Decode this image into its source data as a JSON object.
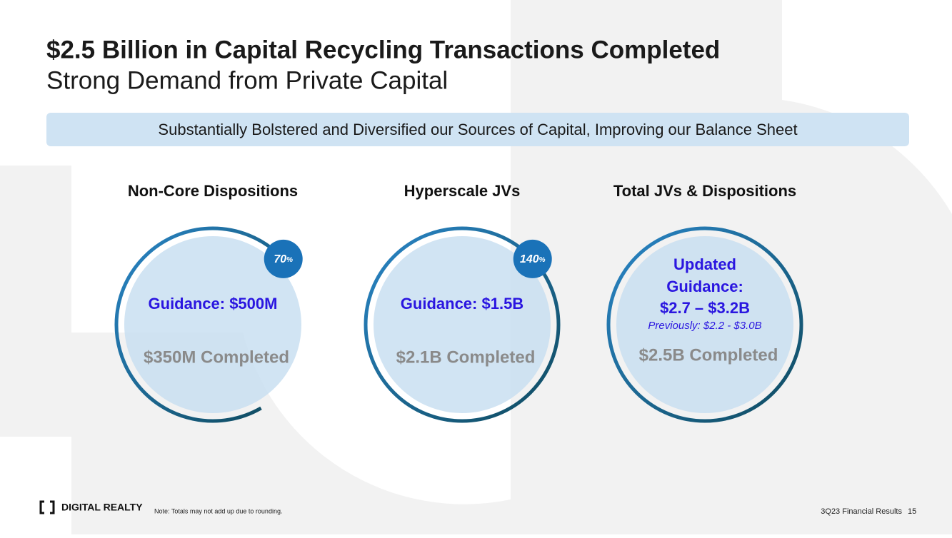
{
  "header": {
    "title": "$2.5 Billion in Capital Recycling Transactions Completed",
    "subtitle": "Strong Demand from Private Capital"
  },
  "banner": "Substantially Bolstered and Diversified our Sources of Capital, Improving our Balance Sheet",
  "panels": [
    {
      "heading": "Non-Core Dispositions",
      "progress": 70,
      "unit": "%",
      "guidance": [
        "Guidance: $500M"
      ],
      "completed": "$350M Completed"
    },
    {
      "heading": "Hyperscale JVs",
      "progress": 140,
      "unit": "%",
      "guidance": [
        "Guidance: $1.5B"
      ],
      "completed": "$2.1B Completed"
    },
    {
      "heading": "Total JVs & Dispositions",
      "guidance": [
        "Updated",
        "Guidance:",
        "$2.7 – $3.2B"
      ],
      "previously": "Previously: $2.2 - $3.0B",
      "completed": "$2.5B Completed"
    }
  ],
  "footer": {
    "logo": "DIGITAL REALTY",
    "note": "Note: Totals may not add up due to rounding.",
    "report": "3Q23 Financial Results",
    "page": "15"
  }
}
